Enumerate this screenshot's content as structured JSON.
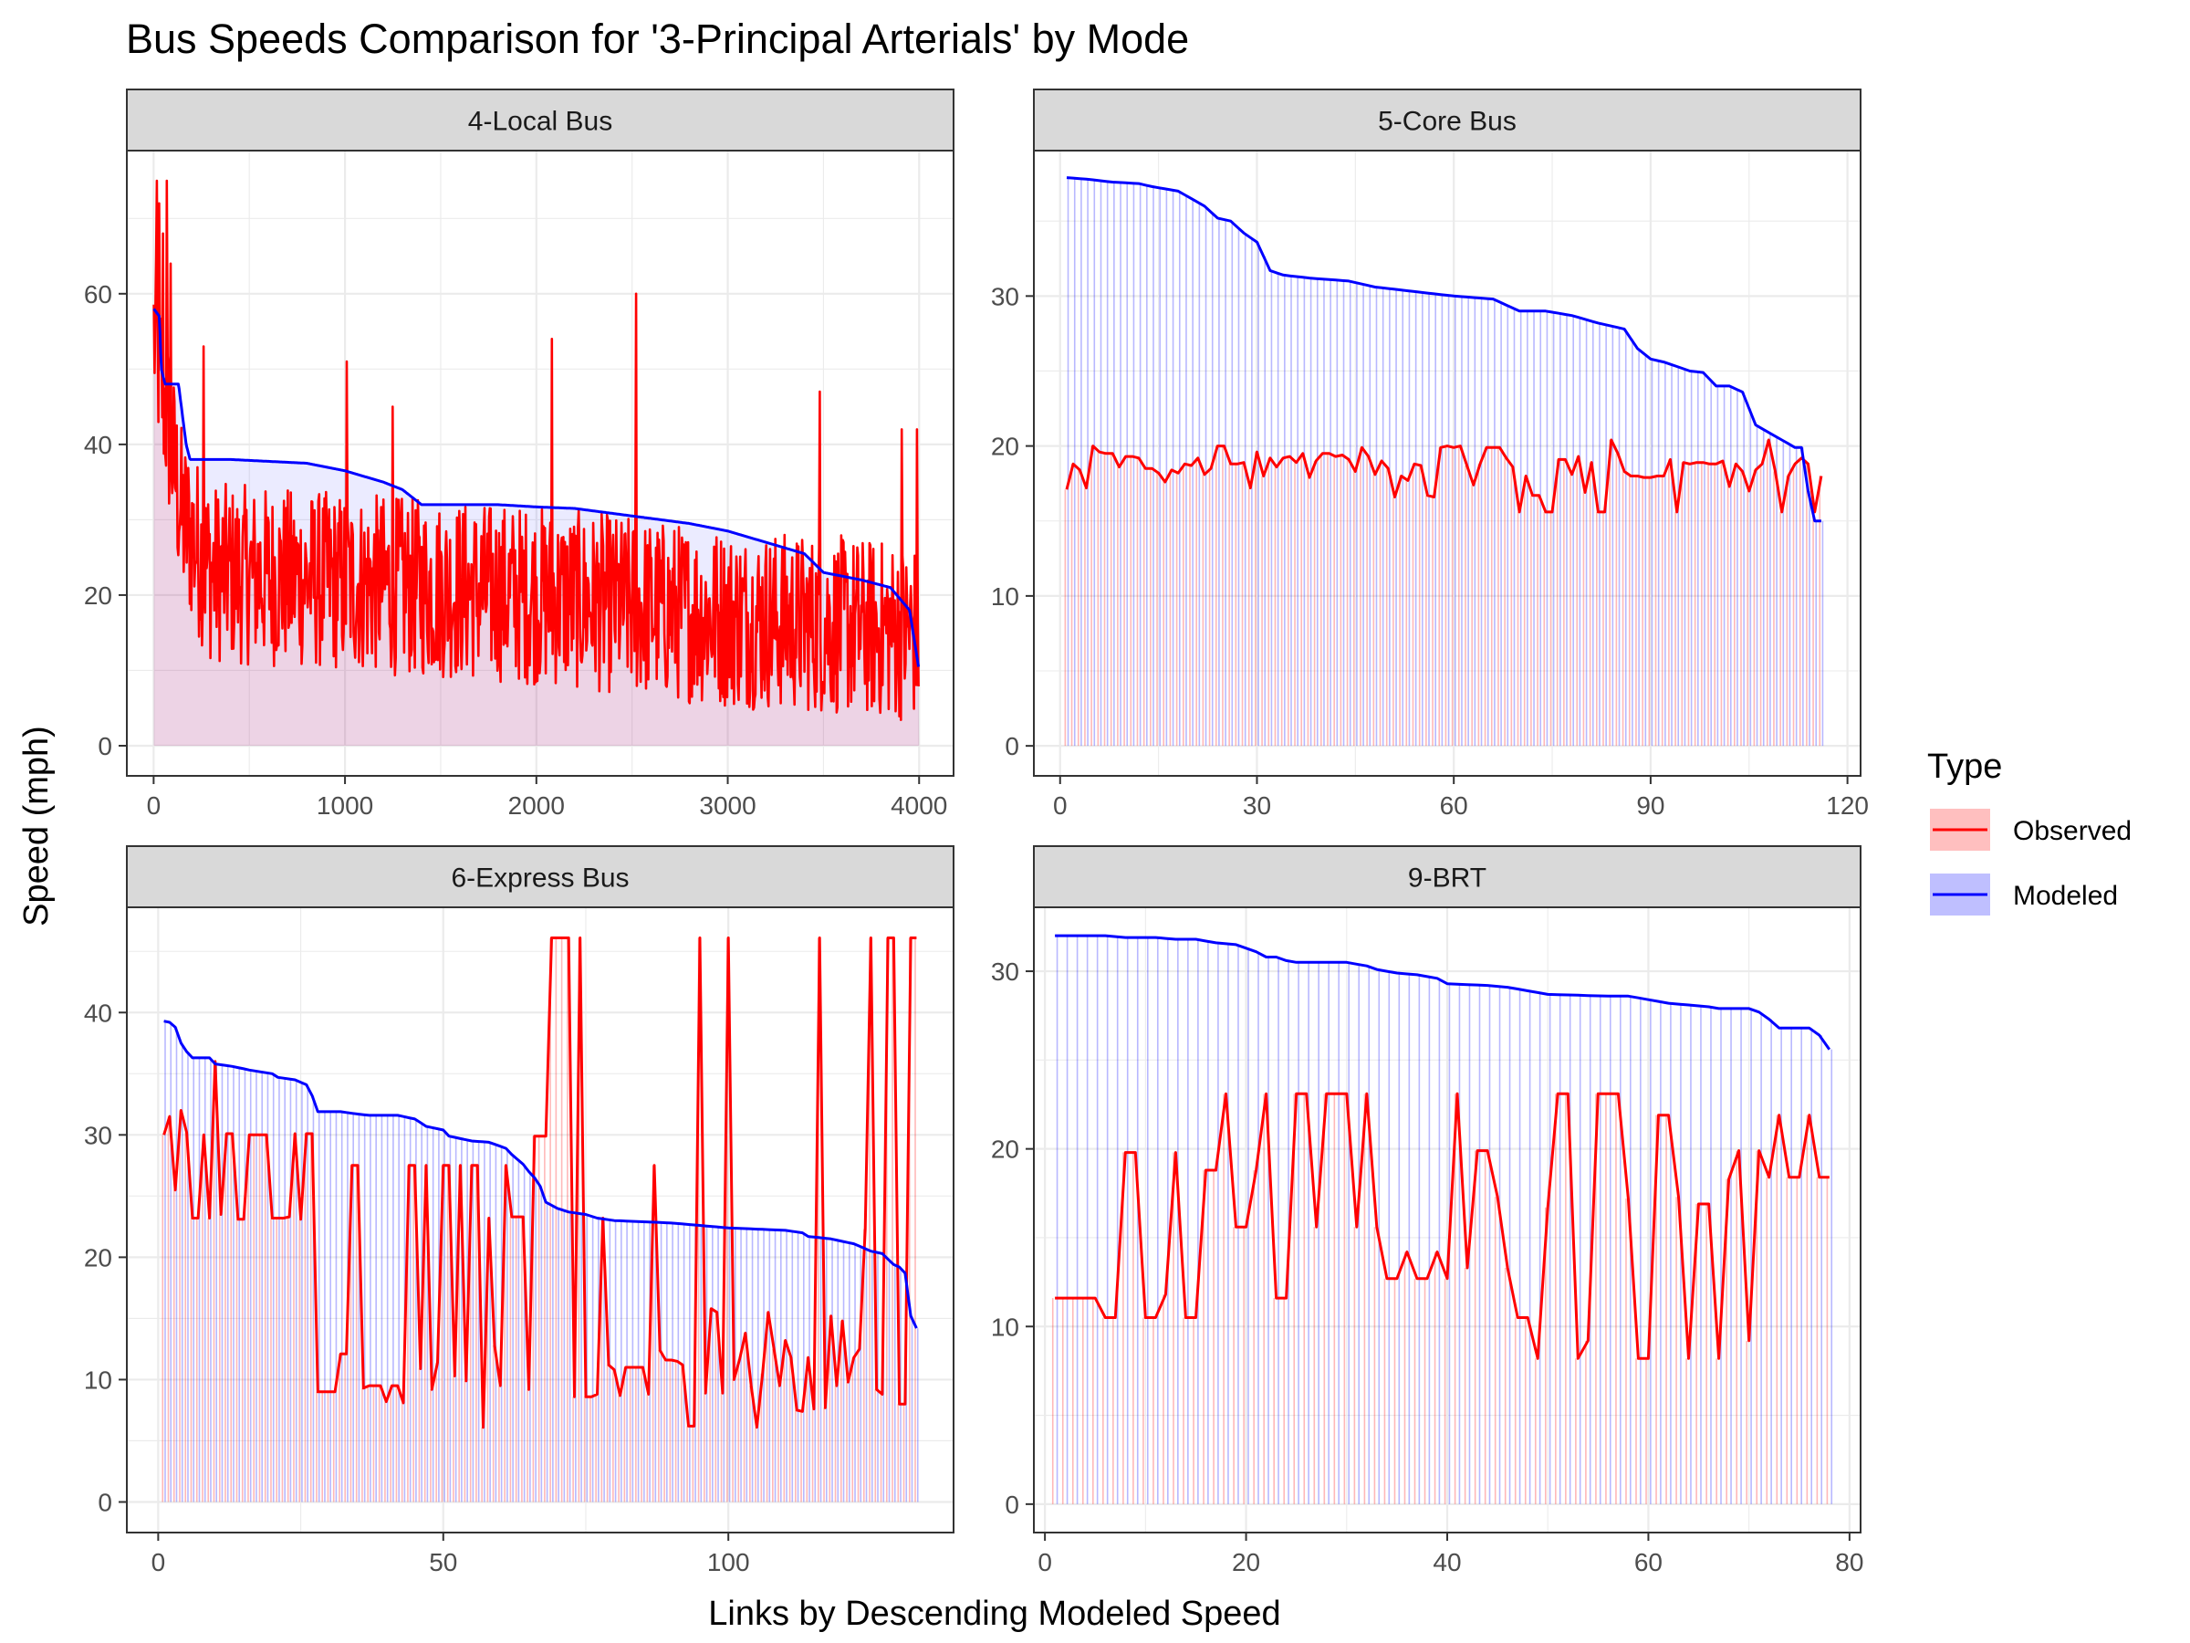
{
  "page_title": "Bus Speeds Comparison for '3-Principal Arterials' by Mode",
  "x_axis_title": "Links by Descending Modeled Speed",
  "y_axis_title": "Speed (mph)",
  "legend": {
    "title": "Type",
    "items": [
      {
        "label": "Observed",
        "color": "#ff0000",
        "fill": "#ffbfbf"
      },
      {
        "label": "Modeled",
        "color": "#0000ff",
        "fill": "#bfbfff"
      }
    ]
  },
  "colors": {
    "observed": "#ff0000",
    "modeled": "#0000ff",
    "strip_bg": "#d9d9d9",
    "grid": "#ebebeb"
  },
  "chart_data": [
    {
      "type": "line",
      "facet": "4-Local Bus",
      "xlim": [
        -140,
        4180
      ],
      "ylim": [
        -4,
        79
      ],
      "x_ticks": [
        0,
        1000,
        2000,
        3000,
        4000
      ],
      "x_tick_labels": [
        "0",
        "1000",
        "2000",
        "3000",
        "4000"
      ],
      "y_ticks": [
        0,
        20,
        40,
        60
      ],
      "y_tick_labels": [
        "0",
        "20",
        "40",
        "60"
      ],
      "n_links": 4000,
      "modeled_curve": [
        [
          1,
          58
        ],
        [
          30,
          57
        ],
        [
          40,
          50
        ],
        [
          60,
          48
        ],
        [
          130,
          48
        ],
        [
          170,
          40
        ],
        [
          190,
          38
        ],
        [
          400,
          38
        ],
        [
          800,
          37.5
        ],
        [
          1000,
          36.5
        ],
        [
          1200,
          35
        ],
        [
          1300,
          34
        ],
        [
          1400,
          32
        ],
        [
          1800,
          32
        ],
        [
          2000,
          31.7
        ],
        [
          2200,
          31.5
        ],
        [
          2500,
          30.5
        ],
        [
          2800,
          29.5
        ],
        [
          3000,
          28.5
        ],
        [
          3200,
          27
        ],
        [
          3400,
          25.5
        ],
        [
          3500,
          23
        ],
        [
          3700,
          22
        ],
        [
          3850,
          21
        ],
        [
          3950,
          18
        ],
        [
          4000,
          10
        ]
      ],
      "observed_profile": {
        "mean": [
          [
            0,
            55
          ],
          [
            150,
            30
          ],
          [
            300,
            23
          ],
          [
            1400,
            21
          ],
          [
            2000,
            20
          ],
          [
            3000,
            17
          ],
          [
            3600,
            16
          ],
          [
            4000,
            15
          ]
        ],
        "spread": 12,
        "min": 3,
        "max": 75
      },
      "observed_spikes": [
        [
          15,
          75
        ],
        [
          30,
          72
        ],
        [
          50,
          68
        ],
        [
          70,
          75
        ],
        [
          90,
          64
        ],
        [
          260,
          53
        ],
        [
          1010,
          51
        ],
        [
          1250,
          45
        ],
        [
          2080,
          54
        ],
        [
          2520,
          60
        ],
        [
          3480,
          47
        ],
        [
          3910,
          42
        ],
        [
          3990,
          42
        ]
      ]
    },
    {
      "type": "line",
      "facet": "5-Core Bus",
      "xlim": [
        -4,
        122
      ],
      "ylim": [
        -2,
        39.7
      ],
      "x_ticks": [
        0,
        30,
        60,
        90,
        120
      ],
      "x_tick_labels": [
        "0",
        "30",
        "60",
        "90",
        "120"
      ],
      "y_ticks": [
        0,
        10,
        20,
        30
      ],
      "y_tick_labels": [
        "0",
        "10",
        "20",
        "30"
      ],
      "n_links": 116,
      "modeled_curve": [
        [
          1,
          37.9
        ],
        [
          4,
          37.8
        ],
        [
          8,
          37.6
        ],
        [
          12,
          37.5
        ],
        [
          14,
          37.3
        ],
        [
          18,
          37
        ],
        [
          20,
          36.5
        ],
        [
          22,
          36
        ],
        [
          24,
          35.2
        ],
        [
          26,
          35
        ],
        [
          28,
          34.2
        ],
        [
          30,
          33.6
        ],
        [
          32,
          31.7
        ],
        [
          34,
          31.4
        ],
        [
          38,
          31.2
        ],
        [
          44,
          31
        ],
        [
          48,
          30.6
        ],
        [
          52,
          30.4
        ],
        [
          56,
          30.2
        ],
        [
          60,
          30
        ],
        [
          66,
          29.8
        ],
        [
          70,
          29
        ],
        [
          74,
          29
        ],
        [
          78,
          28.7
        ],
        [
          82,
          28.2
        ],
        [
          86,
          27.8
        ],
        [
          88,
          26.5
        ],
        [
          90,
          25.8
        ],
        [
          92,
          25.6
        ],
        [
          96,
          25
        ],
        [
          98,
          24.9
        ],
        [
          100,
          24
        ],
        [
          102,
          24
        ],
        [
          104,
          23.6
        ],
        [
          106,
          21.4
        ],
        [
          108,
          20.9
        ],
        [
          110,
          20.4
        ],
        [
          112,
          19.9
        ],
        [
          113,
          19.9
        ],
        [
          114,
          17
        ],
        [
          115,
          15
        ],
        [
          116,
          15
        ]
      ],
      "observed_values": [
        17.1,
        18.8,
        18.4,
        17.2,
        20,
        19.6,
        19.5,
        19.5,
        18.6,
        19.3,
        19.3,
        19.2,
        18.5,
        18.5,
        18.2,
        17.6,
        18.4,
        18.2,
        18.8,
        18.7,
        19.2,
        18.1,
        18.5,
        20.0,
        20.0,
        18.8,
        18.8,
        18.9,
        17.2,
        19.6,
        18.0,
        19.2,
        18.6,
        19.2,
        19.3,
        18.9,
        19.5,
        17.9,
        19.0,
        19.5,
        19.5,
        19.3,
        19.4,
        19.1,
        18.3,
        19.9,
        19.3,
        18.1,
        19.0,
        18.5,
        16.6,
        18.0,
        17.7,
        18.8,
        18.7,
        16.7,
        16.6,
        19.9,
        20.0,
        19.9,
        20.0,
        18.7,
        17.4,
        18.8,
        19.9,
        19.9,
        19.9,
        19.2,
        18.6,
        15.6,
        18.0,
        16.7,
        16.7,
        15.6,
        15.6,
        19.1,
        19.1,
        18.1,
        19.3,
        16.9,
        18.9,
        15.6,
        15.6,
        20.4,
        19.5,
        18.3,
        18.0,
        18.0,
        17.9,
        17.9,
        18.0,
        18.0,
        19.1,
        15.6,
        18.9,
        18.8,
        18.9,
        18.9,
        18.8,
        18.8,
        19.0,
        17.3,
        18.8,
        18.3,
        17.0,
        18.4,
        18.8,
        20.4,
        18.3,
        15.6,
        18.0,
        18.8,
        19.2,
        18.8,
        15.6,
        18.0
      ]
    },
    {
      "type": "line",
      "facet": "6-Express Bus",
      "xlim": [
        -5.5,
        139.5
      ],
      "ylim": [
        -2.5,
        48.6
      ],
      "x_ticks": [
        0,
        50,
        100
      ],
      "x_tick_labels": [
        "0",
        "50",
        "100"
      ],
      "y_ticks": [
        0,
        10,
        20,
        30,
        40
      ],
      "y_tick_labels": [
        "0",
        "10",
        "20",
        "30",
        "40"
      ],
      "n_links": 133,
      "modeled_curve": [
        [
          1,
          39.3
        ],
        [
          2,
          39.2
        ],
        [
          3,
          38.8
        ],
        [
          4,
          37.5
        ],
        [
          5,
          36.8
        ],
        [
          6,
          36.3
        ],
        [
          9,
          36.3
        ],
        [
          10,
          35.8
        ],
        [
          13,
          35.6
        ],
        [
          16,
          35.3
        ],
        [
          20,
          35
        ],
        [
          21,
          34.7
        ],
        [
          24,
          34.5
        ],
        [
          26,
          34.1
        ],
        [
          27,
          33.2
        ],
        [
          28,
          31.9
        ],
        [
          32,
          31.9
        ],
        [
          35,
          31.7
        ],
        [
          37,
          31.6
        ],
        [
          42,
          31.6
        ],
        [
          45,
          31.3
        ],
        [
          47,
          30.7
        ],
        [
          50,
          30.4
        ],
        [
          51,
          29.9
        ],
        [
          55,
          29.5
        ],
        [
          58,
          29.4
        ],
        [
          61,
          28.9
        ],
        [
          62,
          28.4
        ],
        [
          63,
          28
        ],
        [
          64,
          27.6
        ],
        [
          65,
          27
        ],
        [
          66,
          26.5
        ],
        [
          67,
          25.8
        ],
        [
          67.5,
          24.8
        ],
        [
          68,
          24.5
        ],
        [
          70,
          24
        ],
        [
          72,
          23.7
        ],
        [
          75,
          23.5
        ],
        [
          77,
          23.2
        ],
        [
          80,
          23
        ],
        [
          90,
          22.8
        ],
        [
          95,
          22.6
        ],
        [
          100,
          22.4
        ],
        [
          110,
          22.2
        ],
        [
          113,
          22.0
        ],
        [
          114,
          21.7
        ],
        [
          118,
          21.5
        ],
        [
          122,
          21.1
        ],
        [
          125,
          20.5
        ],
        [
          127,
          20.3
        ],
        [
          129,
          19.4
        ],
        [
          130,
          19.2
        ],
        [
          131,
          18.7
        ],
        [
          132,
          15.2
        ],
        [
          133,
          14.2
        ]
      ],
      "observed_values": [
        30,
        31.5,
        25.5,
        32,
        30.2,
        23.2,
        23.2,
        30,
        23.2,
        36,
        23.5,
        30.1,
        30.1,
        23.1,
        23.1,
        30,
        30,
        30,
        30,
        23.2,
        23.2,
        23.2,
        23.3,
        30.1,
        23.1,
        30.1,
        30.1,
        9,
        9,
        9,
        9,
        12.1,
        12.1,
        27.5,
        27.5,
        9.3,
        9.5,
        9.5,
        9.5,
        8.2,
        9.5,
        9.5,
        8.1,
        27.5,
        27.5,
        10.9,
        27.5,
        9.2,
        11.4,
        27.5,
        27.5,
        10.3,
        27.5,
        9.9,
        27.5,
        27.5,
        6.1,
        23.2,
        12.8,
        9.5,
        27.5,
        23.3,
        23.3,
        23.3,
        9.2,
        29.9,
        29.9,
        29.9,
        46.1,
        46.1,
        46.1,
        46.1,
        8.6,
        46.1,
        8.6,
        8.6,
        8.8,
        23.2,
        11.2,
        10.8,
        8.7,
        11,
        11,
        11,
        11,
        8.8,
        27.5,
        12.4,
        11.6,
        11.6,
        11.5,
        11.2,
        6.2,
        6.2,
        46.1,
        8.9,
        15.8,
        15.5,
        8.9,
        46.1,
        10,
        11.7,
        13.8,
        9.5,
        6.1,
        10.5,
        15.5,
        12.5,
        9.5,
        13.2,
        11.8,
        7.5,
        7.4,
        11.8,
        7.6,
        46.1,
        7.7,
        15.2,
        9.5,
        14.8,
        9.8,
        11.8,
        12.5,
        22.3,
        46.1,
        9.2,
        8.8,
        46.1,
        46.1,
        8,
        8,
        46.1,
        46.1
      ]
    },
    {
      "type": "line",
      "facet": "9-BRT",
      "xlim": [
        -1.1,
        81.1
      ],
      "ylim": [
        -1.6,
        33.6
      ],
      "x_ticks": [
        0,
        20,
        40,
        60,
        80
      ],
      "x_tick_labels": [
        "0",
        "20",
        "40",
        "60",
        "80"
      ],
      "y_ticks": [
        0,
        10,
        20,
        30
      ],
      "y_tick_labels": [
        "0",
        "10",
        "20",
        "30"
      ],
      "n_links": 78,
      "modeled_curve": [
        [
          1,
          32
        ],
        [
          4,
          32
        ],
        [
          6,
          32
        ],
        [
          8,
          31.9
        ],
        [
          11,
          31.9
        ],
        [
          13,
          31.8
        ],
        [
          15,
          31.8
        ],
        [
          17,
          31.6
        ],
        [
          19,
          31.5
        ],
        [
          20,
          31.3
        ],
        [
          21,
          31.1
        ],
        [
          22,
          30.8
        ],
        [
          23,
          30.8
        ],
        [
          24,
          30.6
        ],
        [
          25,
          30.5
        ],
        [
          30,
          30.5
        ],
        [
          31,
          30.4
        ],
        [
          32,
          30.3
        ],
        [
          33,
          30.1
        ],
        [
          35,
          29.9
        ],
        [
          37,
          29.8
        ],
        [
          39,
          29.6
        ],
        [
          40,
          29.3
        ],
        [
          44,
          29.2
        ],
        [
          46,
          29.1
        ],
        [
          48,
          28.9
        ],
        [
          50,
          28.7
        ],
        [
          56,
          28.6
        ],
        [
          58,
          28.6
        ],
        [
          60,
          28.4
        ],
        [
          62,
          28.2
        ],
        [
          64,
          28.1
        ],
        [
          66,
          28
        ],
        [
          67,
          27.9
        ],
        [
          70,
          27.9
        ],
        [
          71,
          27.7
        ],
        [
          72,
          27.3
        ],
        [
          73,
          26.8
        ],
        [
          75,
          26.8
        ],
        [
          76,
          26.8
        ],
        [
          77,
          26.4
        ],
        [
          77.5,
          25.6
        ],
        [
          78,
          25.6
        ]
      ],
      "observed_values": [
        11.6,
        11.6,
        11.6,
        11.6,
        11.6,
        10.5,
        10.5,
        19.8,
        19.8,
        10.5,
        10.5,
        11.8,
        19.8,
        10.5,
        10.5,
        18.8,
        18.8,
        23.1,
        15.6,
        15.6,
        18.8,
        23.1,
        11.6,
        11.6,
        23.1,
        23.1,
        15.6,
        23.1,
        23.1,
        23.1,
        15.6,
        23.1,
        15.6,
        12.7,
        12.7,
        14.2,
        12.7,
        12.7,
        14.2,
        12.7,
        23.1,
        13.3,
        19.9,
        19.9,
        17.3,
        13.3,
        10.5,
        10.5,
        8.2,
        16.7,
        23.1,
        23.1,
        8.2,
        9.2,
        23.1,
        23.1,
        23.1,
        17.2,
        8.2,
        8.2,
        21.9,
        21.9,
        17.3,
        8.2,
        16.9,
        16.9,
        8.2,
        18.3,
        19.9,
        9.2,
        19.9,
        18.4,
        21.9,
        18.4,
        18.4,
        21.9,
        18.4,
        18.4
      ]
    }
  ]
}
